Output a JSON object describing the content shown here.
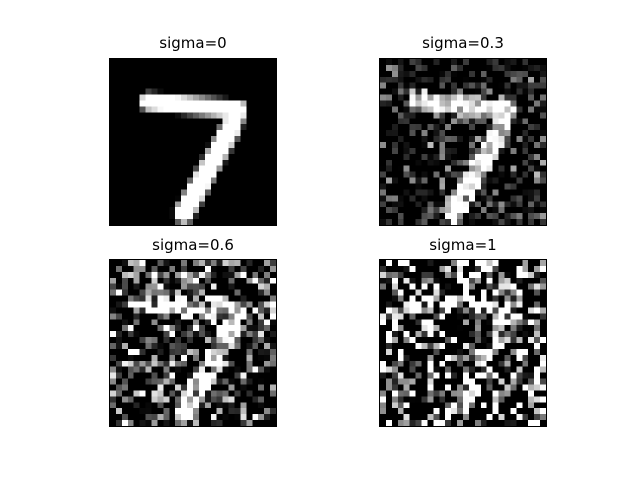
{
  "figure": {
    "panels": [
      {
        "title": "sigma=0",
        "sigma": 0
      },
      {
        "title": "sigma=0.3",
        "sigma": 0.3
      },
      {
        "title": "sigma=0.6",
        "sigma": 0.6
      },
      {
        "title": "sigma=1",
        "sigma": 1
      }
    ],
    "colormap": "gray",
    "background": "#ffffff"
  }
}
